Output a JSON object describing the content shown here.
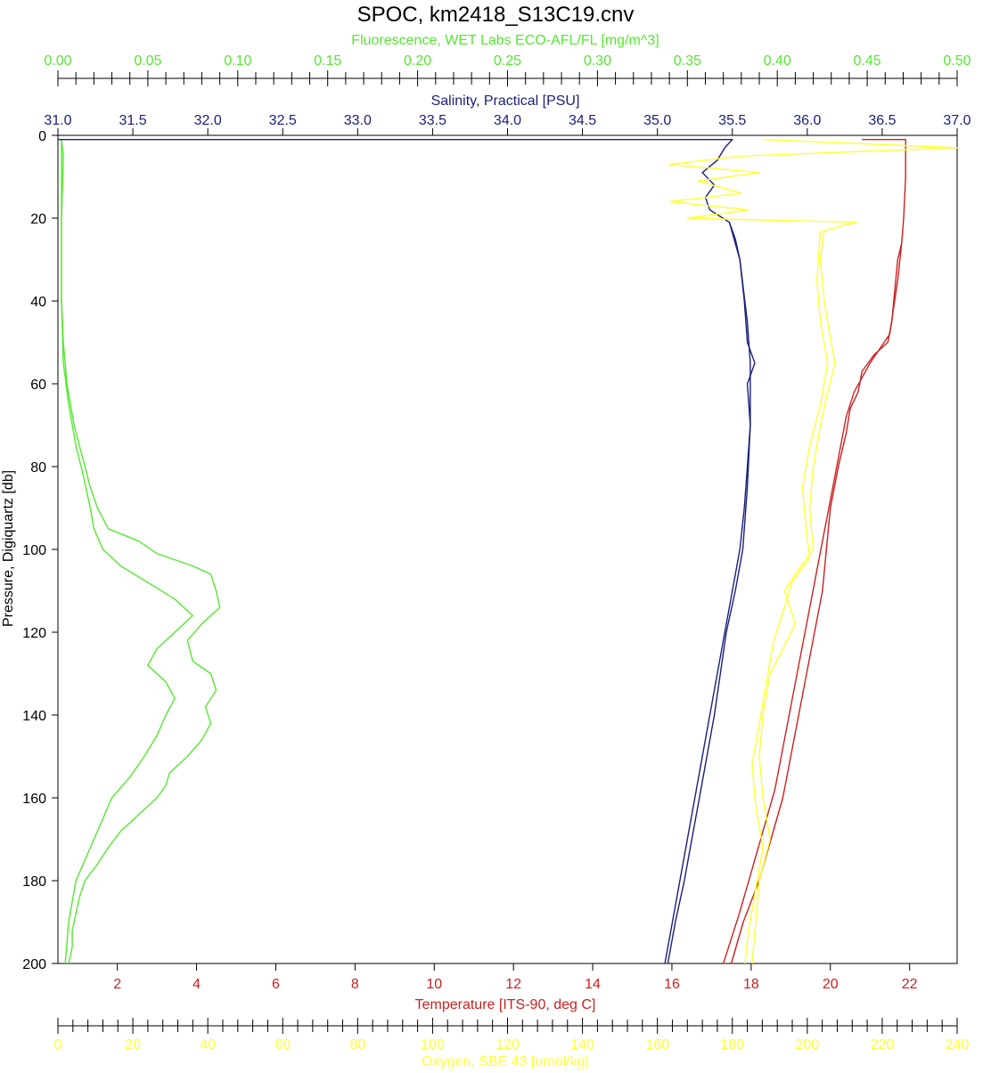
{
  "chart_data": {
    "type": "line",
    "title": "SPOC, km2418_S13C19.cnv",
    "y_axis": {
      "label": "Pressure, Digiquartz [db]",
      "ylim": [
        0,
        200
      ],
      "inverted": true,
      "ticks": [
        "0",
        "20",
        "40",
        "60",
        "80",
        "100",
        "120",
        "140",
        "160",
        "180",
        "200"
      ],
      "color": "#000000"
    },
    "axes": {
      "fluorescence": {
        "label": "Fluorescence, WET Labs ECO-AFL/FL [mg/m^3]",
        "position": "top",
        "color": "#55e830",
        "xlim": [
          0.0,
          0.5
        ],
        "ticks": [
          "0.00",
          "0.05",
          "0.10",
          "0.15",
          "0.20",
          "0.25",
          "0.30",
          "0.35",
          "0.40",
          "0.45",
          "0.50"
        ]
      },
      "salinity": {
        "label": "Salinity, Practical [PSU]",
        "position": "top",
        "color": "#1a1f7a",
        "xlim": [
          31.0,
          37.0
        ],
        "ticks": [
          "31.0",
          "31.5",
          "32.0",
          "32.5",
          "33.0",
          "33.5",
          "34.0",
          "34.5",
          "35.0",
          "35.5",
          "36.0",
          "36.5",
          "37.0"
        ]
      },
      "temperature": {
        "label": "Temperature [ITS-90, deg C]",
        "position": "bottom",
        "color": "#cc2020",
        "xlim": [
          0.5,
          23.2
        ],
        "ticks": [
          "2",
          "4",
          "6",
          "8",
          "10",
          "12",
          "14",
          "16",
          "18",
          "20",
          "22"
        ],
        "tick_values": [
          2,
          4,
          6,
          8,
          10,
          12,
          14,
          16,
          18,
          20,
          22
        ]
      },
      "oxygen": {
        "label": "Oxygen, SBE 43 [umol/kg]",
        "position": "bottom",
        "color": "#ffff33",
        "xlim": [
          0,
          250
        ],
        "ticks": [
          "0",
          "20",
          "40",
          "60",
          "80",
          "100",
          "120",
          "140",
          "160",
          "180",
          "200",
          "220",
          "240"
        ]
      }
    },
    "grid": false,
    "series": [
      {
        "axis": "fluorescence",
        "color": "#55e830",
        "points": [
          [
            0.002,
            1
          ],
          [
            0.003,
            5
          ],
          [
            0.002,
            20
          ],
          [
            0.002,
            40
          ],
          [
            0.003,
            50
          ],
          [
            0.004,
            55
          ],
          [
            0.005,
            60
          ],
          [
            0.007,
            65
          ],
          [
            0.009,
            70
          ],
          [
            0.012,
            75
          ],
          [
            0.015,
            80
          ],
          [
            0.018,
            85
          ],
          [
            0.022,
            90
          ],
          [
            0.028,
            95
          ],
          [
            0.045,
            98
          ],
          [
            0.055,
            101
          ],
          [
            0.075,
            104
          ],
          [
            0.085,
            106
          ],
          [
            0.088,
            110
          ],
          [
            0.09,
            114
          ],
          [
            0.08,
            118
          ],
          [
            0.072,
            122
          ],
          [
            0.075,
            127
          ],
          [
            0.085,
            130
          ],
          [
            0.088,
            134
          ],
          [
            0.082,
            138
          ],
          [
            0.085,
            142
          ],
          [
            0.08,
            146
          ],
          [
            0.072,
            150
          ],
          [
            0.062,
            154
          ],
          [
            0.06,
            157
          ],
          [
            0.055,
            160
          ],
          [
            0.045,
            164
          ],
          [
            0.035,
            168
          ],
          [
            0.028,
            172
          ],
          [
            0.022,
            176
          ],
          [
            0.015,
            180
          ],
          [
            0.012,
            184
          ],
          [
            0.01,
            188
          ],
          [
            0.008,
            192
          ],
          [
            0.008,
            196
          ],
          [
            0.006,
            200
          ]
        ]
      },
      {
        "axis": "fluorescence",
        "color": "#55e830",
        "points": [
          [
            0.002,
            1
          ],
          [
            0.002,
            20
          ],
          [
            0.002,
            40
          ],
          [
            0.003,
            55
          ],
          [
            0.006,
            65
          ],
          [
            0.01,
            75
          ],
          [
            0.014,
            82
          ],
          [
            0.018,
            90
          ],
          [
            0.02,
            95
          ],
          [
            0.025,
            100
          ],
          [
            0.035,
            104
          ],
          [
            0.05,
            108
          ],
          [
            0.065,
            112
          ],
          [
            0.075,
            116
          ],
          [
            0.065,
            120
          ],
          [
            0.055,
            124
          ],
          [
            0.05,
            128
          ],
          [
            0.06,
            132
          ],
          [
            0.065,
            136
          ],
          [
            0.06,
            140
          ],
          [
            0.055,
            145
          ],
          [
            0.048,
            150
          ],
          [
            0.04,
            155
          ],
          [
            0.03,
            160
          ],
          [
            0.025,
            165
          ],
          [
            0.02,
            170
          ],
          [
            0.015,
            175
          ],
          [
            0.01,
            180
          ],
          [
            0.008,
            185
          ],
          [
            0.006,
            190
          ],
          [
            0.005,
            195
          ],
          [
            0.004,
            200
          ]
        ]
      },
      {
        "axis": "salinity",
        "color": "#1a1f7a",
        "points": [
          [
            31.0,
            1
          ],
          [
            35.5,
            1
          ],
          [
            35.45,
            3
          ],
          [
            35.4,
            6
          ],
          [
            35.3,
            9
          ],
          [
            35.38,
            12
          ],
          [
            35.32,
            15
          ],
          [
            35.35,
            18
          ],
          [
            35.48,
            21
          ],
          [
            35.52,
            25
          ],
          [
            35.55,
            30
          ],
          [
            35.58,
            40
          ],
          [
            35.6,
            50
          ],
          [
            35.65,
            55
          ],
          [
            35.6,
            60
          ],
          [
            35.62,
            70
          ],
          [
            35.6,
            80
          ],
          [
            35.58,
            90
          ],
          [
            35.55,
            100
          ],
          [
            35.5,
            110
          ],
          [
            35.45,
            120
          ],
          [
            35.4,
            130
          ],
          [
            35.35,
            140
          ],
          [
            35.3,
            150
          ],
          [
            35.25,
            160
          ],
          [
            35.2,
            170
          ],
          [
            35.15,
            180
          ],
          [
            35.1,
            190
          ],
          [
            35.05,
            200
          ]
        ]
      },
      {
        "axis": "salinity",
        "color": "#1a1f7a",
        "points": [
          [
            35.48,
            21
          ],
          [
            35.55,
            30
          ],
          [
            35.6,
            45
          ],
          [
            35.62,
            55
          ],
          [
            35.62,
            70
          ],
          [
            35.6,
            85
          ],
          [
            35.57,
            100
          ],
          [
            35.52,
            110
          ],
          [
            35.46,
            120
          ],
          [
            35.42,
            130
          ],
          [
            35.38,
            140
          ],
          [
            35.33,
            150
          ],
          [
            35.28,
            160
          ],
          [
            35.23,
            170
          ],
          [
            35.18,
            180
          ],
          [
            35.12,
            190
          ],
          [
            35.07,
            200
          ]
        ]
      },
      {
        "axis": "temperature",
        "color": "#cc2020",
        "points": [
          [
            20.8,
            1
          ],
          [
            21.9,
            1
          ],
          [
            21.9,
            10
          ],
          [
            21.85,
            20
          ],
          [
            21.8,
            26
          ],
          [
            21.7,
            30
          ],
          [
            21.65,
            35
          ],
          [
            21.6,
            40
          ],
          [
            21.55,
            45
          ],
          [
            21.45,
            50
          ],
          [
            21.1,
            53
          ],
          [
            20.8,
            57
          ],
          [
            20.7,
            62
          ],
          [
            20.5,
            66
          ],
          [
            20.4,
            72
          ],
          [
            20.2,
            80
          ],
          [
            20.0,
            90
          ],
          [
            19.9,
            100
          ],
          [
            19.8,
            110
          ],
          [
            19.6,
            120
          ],
          [
            19.4,
            130
          ],
          [
            19.2,
            140
          ],
          [
            19.0,
            150
          ],
          [
            18.8,
            160
          ],
          [
            18.5,
            170
          ],
          [
            18.2,
            180
          ],
          [
            17.8,
            190
          ],
          [
            17.5,
            200
          ]
        ]
      },
      {
        "axis": "temperature",
        "color": "#cc2020",
        "points": [
          [
            21.8,
            26
          ],
          [
            21.7,
            35
          ],
          [
            21.5,
            48
          ],
          [
            21.0,
            55
          ],
          [
            20.6,
            62
          ],
          [
            20.4,
            68
          ],
          [
            20.2,
            78
          ],
          [
            20.0,
            88
          ],
          [
            19.8,
            98
          ],
          [
            19.6,
            108
          ],
          [
            19.4,
            118
          ],
          [
            19.2,
            128
          ],
          [
            19.0,
            138
          ],
          [
            18.8,
            148
          ],
          [
            18.6,
            158
          ],
          [
            18.3,
            168
          ],
          [
            18.0,
            178
          ],
          [
            17.7,
            188
          ],
          [
            17.3,
            200
          ]
        ]
      },
      {
        "axis": "oxygen",
        "color": "#ffff33",
        "points": [
          [
            196,
            1
          ],
          [
            250,
            3
          ],
          [
            190,
            5
          ],
          [
            170,
            7
          ],
          [
            195,
            9
          ],
          [
            178,
            11
          ],
          [
            190,
            14
          ],
          [
            170,
            16
          ],
          [
            192,
            18
          ],
          [
            175,
            20
          ],
          [
            222,
            21
          ],
          [
            213,
            23
          ],
          [
            212,
            30
          ],
          [
            213,
            40
          ],
          [
            215,
            50
          ],
          [
            216,
            55
          ],
          [
            214,
            62
          ],
          [
            212,
            70
          ],
          [
            210,
            80
          ],
          [
            209,
            90
          ],
          [
            210,
            100
          ],
          [
            205,
            106
          ],
          [
            202,
            110
          ],
          [
            205,
            118
          ],
          [
            201,
            125
          ],
          [
            198,
            130
          ],
          [
            196,
            140
          ],
          [
            195,
            150
          ],
          [
            196,
            160
          ],
          [
            198,
            170
          ],
          [
            195,
            180
          ],
          [
            194,
            190
          ],
          [
            193,
            200
          ]
        ]
      },
      {
        "axis": "oxygen",
        "color": "#ffff33",
        "points": [
          [
            212,
            23
          ],
          [
            211,
            35
          ],
          [
            212,
            45
          ],
          [
            214,
            55
          ],
          [
            212,
            65
          ],
          [
            209,
            75
          ],
          [
            207,
            85
          ],
          [
            208,
            95
          ],
          [
            209,
            102
          ],
          [
            204,
            108
          ],
          [
            202,
            114
          ],
          [
            199,
            122
          ],
          [
            197,
            132
          ],
          [
            195,
            142
          ],
          [
            193,
            152
          ],
          [
            194,
            162
          ],
          [
            196,
            172
          ],
          [
            194,
            182
          ],
          [
            192,
            192
          ],
          [
            191,
            200
          ]
        ]
      }
    ]
  }
}
